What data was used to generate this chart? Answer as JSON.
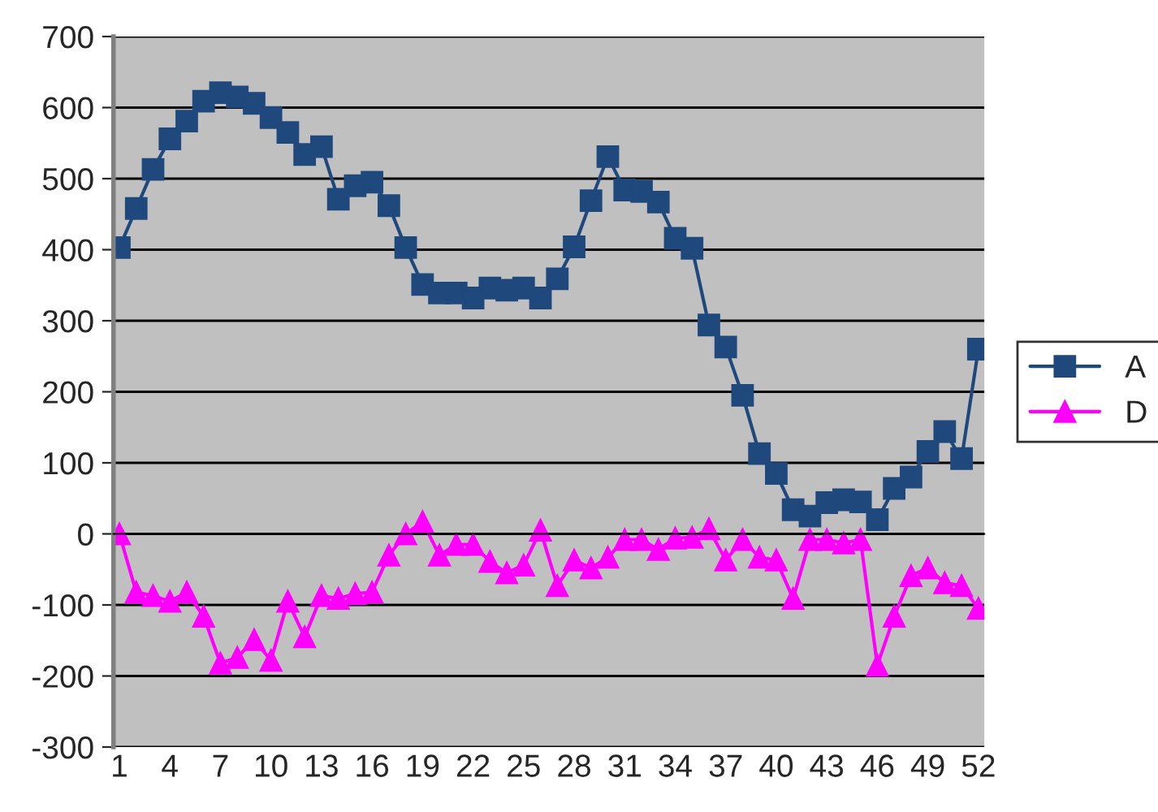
{
  "chart_data": {
    "type": "line",
    "categories": [
      "1",
      null,
      null,
      "4",
      null,
      null,
      "7",
      null,
      null,
      "10",
      null,
      null,
      "13",
      null,
      null,
      "16",
      null,
      null,
      "19",
      null,
      null,
      "22",
      null,
      null,
      "25",
      null,
      null,
      "28",
      null,
      null,
      "31",
      null,
      null,
      "34",
      null,
      null,
      "37",
      null,
      null,
      "40",
      null,
      null,
      "43",
      null,
      null,
      "46",
      null,
      null,
      "49",
      null,
      null,
      "52"
    ],
    "series": [
      {
        "name": "A",
        "color": "#1f497d",
        "marker": "square",
        "values": [
          403,
          458,
          513,
          556,
          581,
          609,
          621,
          615,
          606,
          586,
          565,
          534,
          545,
          471,
          490,
          495,
          462,
          403,
          351,
          339,
          339,
          332,
          346,
          343,
          346,
          332,
          359,
          404,
          469,
          531,
          484,
          482,
          467,
          416,
          402,
          294,
          263,
          195,
          113,
          85,
          34,
          25,
          44,
          48,
          45,
          20,
          64,
          80,
          116,
          144,
          106,
          260
        ]
      },
      {
        "name": "D",
        "color": "#ff00ff",
        "marker": "triangle",
        "values": [
          0,
          -82,
          -87,
          -95,
          -82,
          -116,
          -182,
          -174,
          -149,
          -178,
          -95,
          -145,
          -87,
          -91,
          -84,
          -82,
          -30,
          0,
          17,
          -30,
          -15,
          -15,
          -39,
          -55,
          -44,
          5,
          -73,
          -37,
          -48,
          -33,
          -8,
          -8,
          -22,
          -6,
          -5,
          7,
          -37,
          -8,
          -33,
          -37,
          -91,
          -8,
          -8,
          -13,
          -8,
          -185,
          -116,
          -59,
          -48,
          -69,
          -73,
          -105
        ]
      }
    ],
    "ylim": [
      -300,
      700
    ],
    "yticks": [
      -300,
      -200,
      -100,
      0,
      100,
      200,
      300,
      400,
      500,
      600,
      700
    ],
    "grid": "y",
    "legend": "right",
    "line_style": "solid"
  }
}
